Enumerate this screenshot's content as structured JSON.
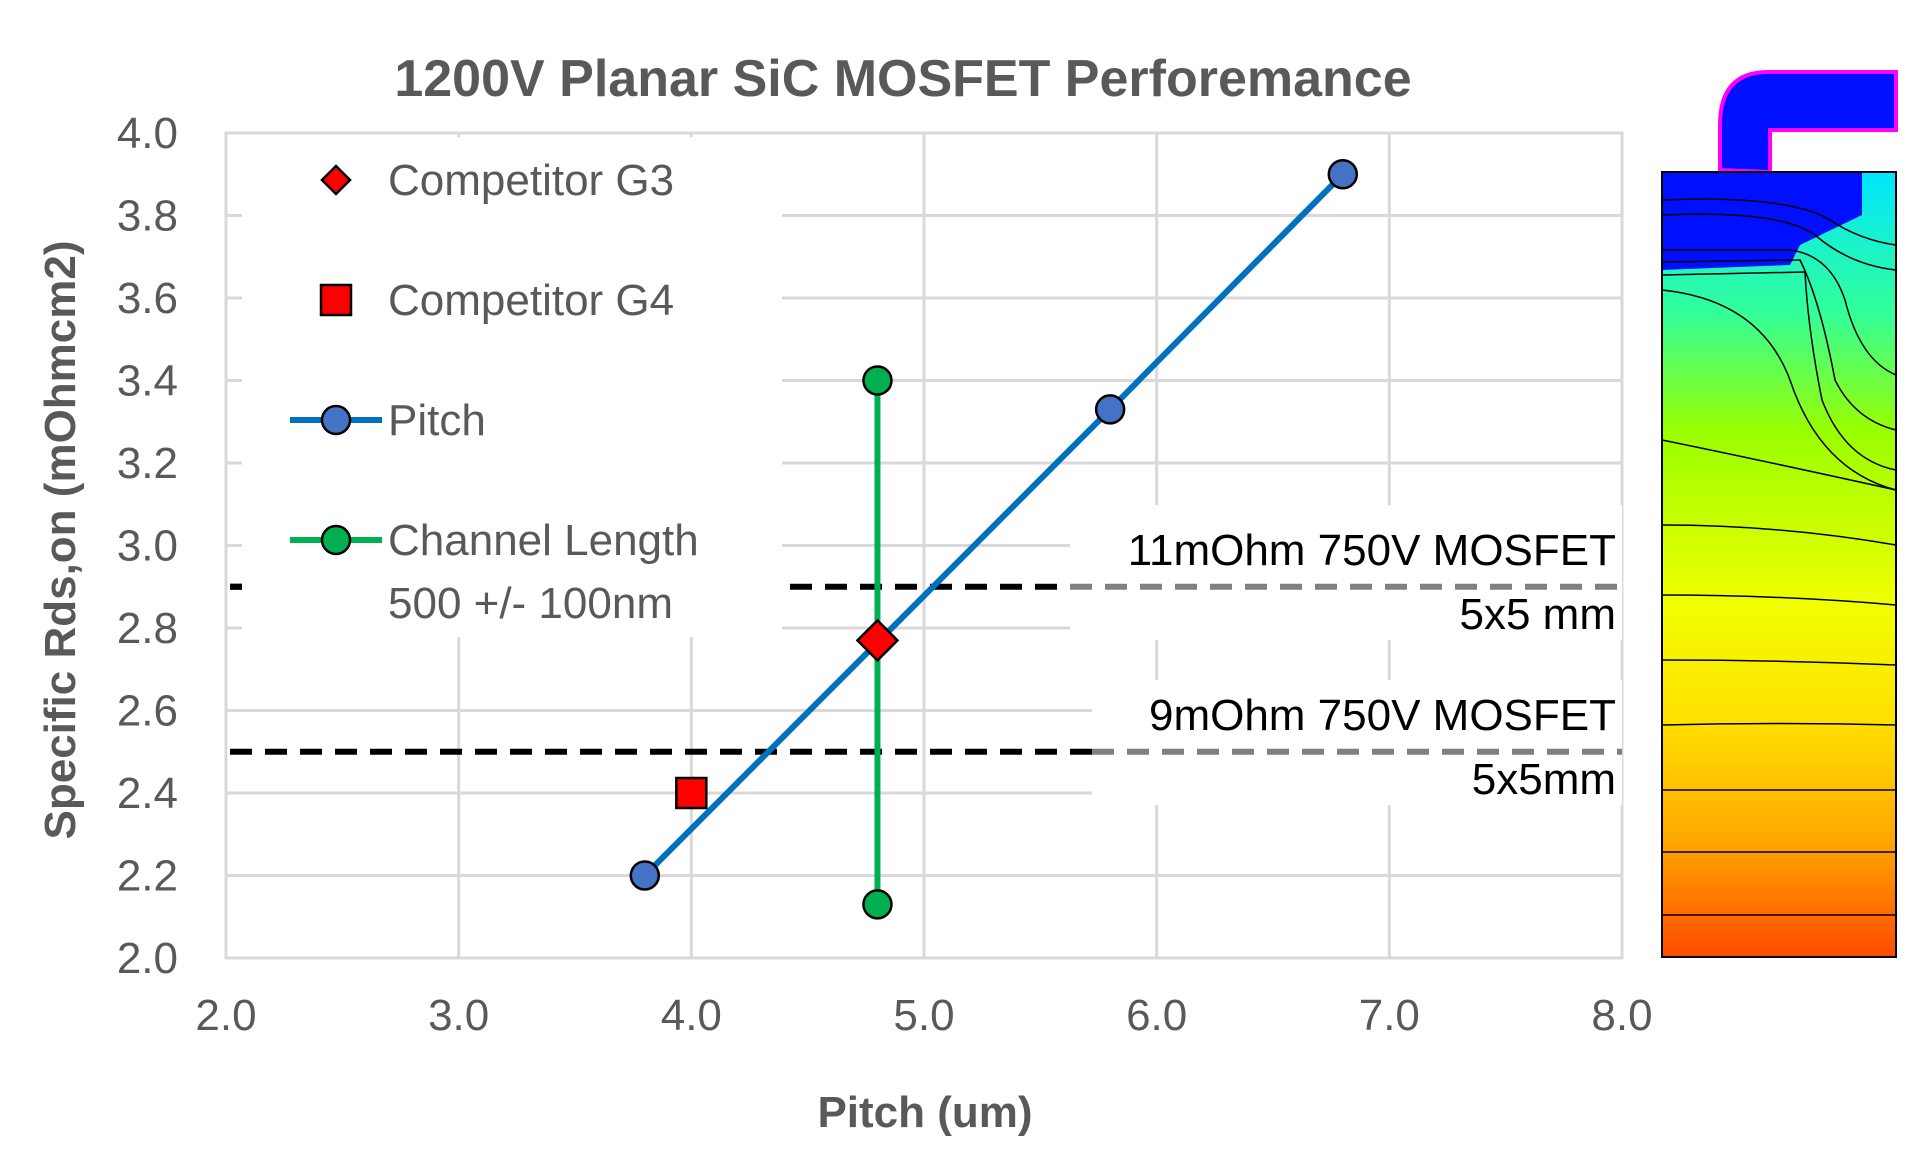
{
  "chart_data": {
    "type": "scatter",
    "title": "1200V Planar SiC MOSFET Perforemance",
    "xlabel": "Pitch (um)",
    "ylabel": "Specific Rds,on (mOhmcm2)",
    "xlim": [
      2.0,
      8.0
    ],
    "ylim": [
      2.0,
      4.0
    ],
    "xticks": [
      "2.0",
      "3.0",
      "4.0",
      "5.0",
      "6.0",
      "7.0",
      "8.0"
    ],
    "yticks": [
      "2.0",
      "2.2",
      "2.4",
      "2.6",
      "2.8",
      "3.0",
      "3.2",
      "3.4",
      "3.6",
      "3.8",
      "4.0"
    ],
    "grid": true,
    "legend_position": "top-left",
    "series": [
      {
        "name": "Competitor G3",
        "marker": "diamond",
        "color": "#ff0000",
        "line": false,
        "points": [
          {
            "x": 4.8,
            "y": 2.77
          }
        ]
      },
      {
        "name": "Competitor G4",
        "marker": "square",
        "color": "#ff0000",
        "line": false,
        "points": [
          {
            "x": 4.0,
            "y": 2.4
          }
        ]
      },
      {
        "name": "Pitch",
        "marker": "circle",
        "color": "#4472c4",
        "line_color": "#0070c0",
        "line": true,
        "points": [
          {
            "x": 3.8,
            "y": 2.2
          },
          {
            "x": 5.8,
            "y": 3.33
          },
          {
            "x": 6.8,
            "y": 3.9
          }
        ]
      },
      {
        "name": "Channel Length",
        "name_line2": "500 +/-  100nm",
        "marker": "circle",
        "color": "#00b050",
        "line_color": "#00b050",
        "line": true,
        "points": [
          {
            "x": 4.8,
            "y": 2.13
          },
          {
            "x": 4.8,
            "y": 3.4
          }
        ]
      }
    ],
    "reference_lines": [
      {
        "y": 2.9,
        "label": "11mOhm 750V MOSFET",
        "sublabel": "5x5 mm"
      },
      {
        "y": 2.5,
        "label": "9mOhm 750V MOSFET",
        "sublabel": "5x5mm"
      }
    ],
    "colors": {
      "grid": "#d9d9d9",
      "text": "#595959",
      "ref_dark": "#000000",
      "ref_light": "#808080"
    }
  }
}
